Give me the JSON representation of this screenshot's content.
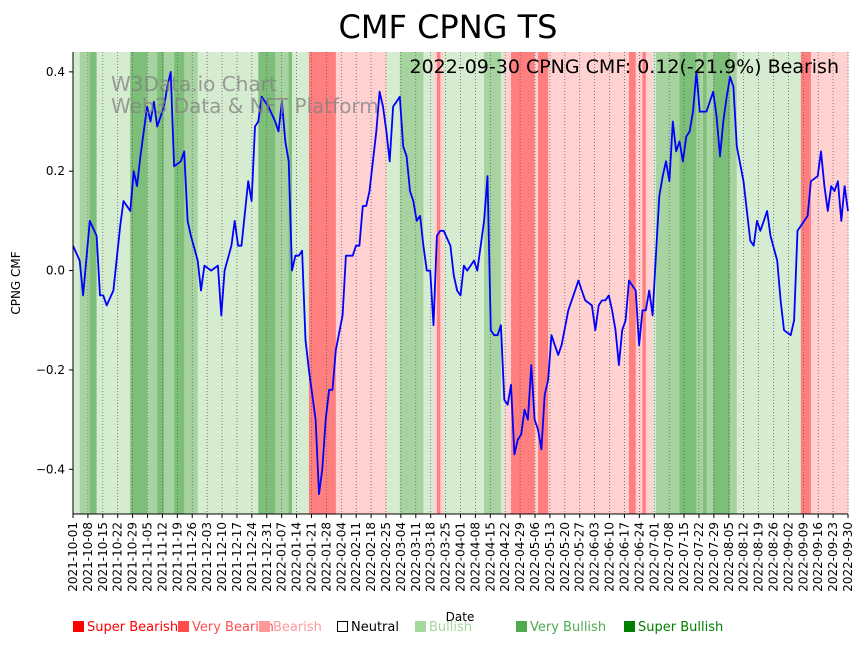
{
  "chart_data": {
    "type": "line",
    "title": "CMF CPNG TS",
    "annotation": "2022-09-30 CPNG CMF: 0.12(-21.9%) Bearish",
    "watermark": [
      "W3Data.io Chart",
      "Web3 Data & NFT Platform"
    ],
    "xlabel": "Date",
    "ylabel": "CPNG CMF",
    "ylim": [
      -0.49,
      0.44
    ],
    "yticks": [
      -0.4,
      -0.2,
      0.0,
      0.2,
      0.4
    ],
    "ytick_labels": [
      "−0.4",
      "−0.2",
      "0.0",
      "0.2",
      "0.4"
    ],
    "x_start": "2021-10-01",
    "x_end": "2022-09-30",
    "xtick_labels": [
      "2021-10-01",
      "2021-10-08",
      "2021-10-15",
      "2021-10-22",
      "2021-10-29",
      "2021-11-05",
      "2021-11-12",
      "2021-11-19",
      "2021-11-26",
      "2021-12-03",
      "2021-12-10",
      "2021-12-17",
      "2021-12-24",
      "2021-12-31",
      "2022-01-07",
      "2022-01-14",
      "2022-01-21",
      "2022-01-28",
      "2022-02-04",
      "2022-02-11",
      "2022-02-18",
      "2022-02-25",
      "2022-03-04",
      "2022-03-11",
      "2022-03-18",
      "2022-03-25",
      "2022-04-01",
      "2022-04-08",
      "2022-04-15",
      "2022-04-22",
      "2022-04-29",
      "2022-05-06",
      "2022-05-13",
      "2022-05-20",
      "2022-05-27",
      "2022-06-03",
      "2022-06-10",
      "2022-06-17",
      "2022-06-24",
      "2022-07-01",
      "2022-07-08",
      "2022-07-15",
      "2022-07-22",
      "2022-07-29",
      "2022-08-05",
      "2022-08-12",
      "2022-08-19",
      "2022-08-26",
      "2022-09-02",
      "2022-09-09",
      "2022-09-16",
      "2022-09-23",
      "2022-09-30"
    ],
    "series": [
      {
        "name": "CPNG CMF",
        "color": "#0000ff",
        "points": [
          [
            0,
            0.05
          ],
          [
            2,
            0.02
          ],
          [
            3,
            -0.05
          ],
          [
            5,
            0.1
          ],
          [
            7,
            0.07
          ],
          [
            8,
            -0.05
          ],
          [
            9,
            -0.05
          ],
          [
            10,
            -0.07
          ],
          [
            12,
            -0.04
          ],
          [
            14,
            0.09
          ],
          [
            15,
            0.14
          ],
          [
            17,
            0.12
          ],
          [
            18,
            0.2
          ],
          [
            19,
            0.17
          ],
          [
            20,
            0.23
          ],
          [
            22,
            0.33
          ],
          [
            23,
            0.3
          ],
          [
            24,
            0.34
          ],
          [
            25,
            0.29
          ],
          [
            27,
            0.33
          ],
          [
            28,
            0.37
          ],
          [
            29,
            0.4
          ],
          [
            30,
            0.21
          ],
          [
            32,
            0.22
          ],
          [
            33,
            0.24
          ],
          [
            34,
            0.1
          ],
          [
            35,
            0.07
          ],
          [
            37,
            0.02
          ],
          [
            38,
            -0.04
          ],
          [
            39,
            0.01
          ],
          [
            41,
            0.0
          ],
          [
            43,
            0.01
          ],
          [
            44,
            -0.09
          ],
          [
            45,
            0.0
          ],
          [
            47,
            0.05
          ],
          [
            48,
            0.1
          ],
          [
            49,
            0.05
          ],
          [
            50,
            0.05
          ],
          [
            52,
            0.18
          ],
          [
            53,
            0.14
          ],
          [
            54,
            0.29
          ],
          [
            55,
            0.3
          ],
          [
            56,
            0.35
          ],
          [
            58,
            0.33
          ],
          [
            60,
            0.3
          ],
          [
            61,
            0.28
          ],
          [
            62,
            0.34
          ],
          [
            63,
            0.26
          ],
          [
            64,
            0.22
          ],
          [
            65,
            0.0
          ],
          [
            66,
            0.03
          ],
          [
            67,
            0.03
          ],
          [
            68,
            0.04
          ],
          [
            69,
            -0.14
          ],
          [
            70,
            -0.2
          ],
          [
            72,
            -0.3
          ],
          [
            73,
            -0.45
          ],
          [
            74,
            -0.4
          ],
          [
            75,
            -0.3
          ],
          [
            76,
            -0.24
          ],
          [
            77,
            -0.24
          ],
          [
            78,
            -0.16
          ],
          [
            80,
            -0.09
          ],
          [
            81,
            0.03
          ],
          [
            82,
            0.03
          ],
          [
            83,
            0.03
          ],
          [
            84,
            0.05
          ],
          [
            85,
            0.05
          ],
          [
            86,
            0.13
          ],
          [
            87,
            0.13
          ],
          [
            88,
            0.16
          ],
          [
            90,
            0.28
          ],
          [
            91,
            0.36
          ],
          [
            92,
            0.33
          ],
          [
            93,
            0.28
          ],
          [
            94,
            0.22
          ],
          [
            95,
            0.33
          ],
          [
            96,
            0.34
          ],
          [
            97,
            0.35
          ],
          [
            98,
            0.25
          ],
          [
            99,
            0.23
          ],
          [
            100,
            0.16
          ],
          [
            101,
            0.14
          ],
          [
            102,
            0.1
          ],
          [
            103,
            0.11
          ],
          [
            104,
            0.05
          ],
          [
            105,
            0.0
          ],
          [
            106,
            0.0
          ],
          [
            107,
            -0.11
          ],
          [
            108,
            0.07
          ],
          [
            109,
            0.08
          ],
          [
            110,
            0.08
          ],
          [
            112,
            0.05
          ],
          [
            113,
            -0.01
          ],
          [
            114,
            -0.04
          ],
          [
            115,
            -0.05
          ],
          [
            116,
            0.01
          ],
          [
            117,
            0.0
          ],
          [
            118,
            0.01
          ],
          [
            119,
            0.02
          ],
          [
            120,
            0.0
          ],
          [
            121,
            0.05
          ],
          [
            122,
            0.1
          ],
          [
            123,
            0.19
          ],
          [
            124,
            -0.12
          ],
          [
            125,
            -0.13
          ],
          [
            126,
            -0.13
          ],
          [
            127,
            -0.11
          ],
          [
            128,
            -0.26
          ],
          [
            129,
            -0.27
          ],
          [
            130,
            -0.23
          ],
          [
            131,
            -0.37
          ],
          [
            132,
            -0.34
          ],
          [
            133,
            -0.33
          ],
          [
            134,
            -0.28
          ],
          [
            135,
            -0.3
          ],
          [
            136,
            -0.19
          ],
          [
            137,
            -0.3
          ],
          [
            138,
            -0.32
          ],
          [
            139,
            -0.36
          ],
          [
            140,
            -0.25
          ],
          [
            141,
            -0.22
          ],
          [
            142,
            -0.13
          ],
          [
            143,
            -0.15
          ],
          [
            144,
            -0.17
          ],
          [
            145,
            -0.15
          ],
          [
            147,
            -0.08
          ],
          [
            148,
            -0.06
          ],
          [
            149,
            -0.04
          ],
          [
            150,
            -0.02
          ],
          [
            151,
            -0.04
          ],
          [
            152,
            -0.06
          ],
          [
            154,
            -0.07
          ],
          [
            155,
            -0.12
          ],
          [
            156,
            -0.07
          ],
          [
            157,
            -0.06
          ],
          [
            158,
            -0.06
          ],
          [
            159,
            -0.05
          ],
          [
            160,
            -0.08
          ],
          [
            161,
            -0.12
          ],
          [
            162,
            -0.19
          ],
          [
            163,
            -0.12
          ],
          [
            164,
            -0.1
          ],
          [
            165,
            -0.02
          ],
          [
            167,
            -0.04
          ],
          [
            168,
            -0.15
          ],
          [
            169,
            -0.08
          ],
          [
            170,
            -0.08
          ],
          [
            171,
            -0.04
          ],
          [
            172,
            -0.09
          ],
          [
            173,
            0.03
          ],
          [
            174,
            0.15
          ],
          [
            175,
            0.19
          ],
          [
            176,
            0.22
          ],
          [
            177,
            0.18
          ],
          [
            178,
            0.3
          ],
          [
            179,
            0.24
          ],
          [
            180,
            0.26
          ],
          [
            181,
            0.22
          ],
          [
            182,
            0.27
          ],
          [
            183,
            0.28
          ],
          [
            184,
            0.32
          ],
          [
            185,
            0.4
          ],
          [
            186,
            0.32
          ],
          [
            188,
            0.32
          ],
          [
            189,
            0.34
          ],
          [
            190,
            0.36
          ],
          [
            191,
            0.31
          ],
          [
            192,
            0.23
          ],
          [
            193,
            0.3
          ],
          [
            194,
            0.35
          ],
          [
            195,
            0.39
          ],
          [
            196,
            0.37
          ],
          [
            197,
            0.25
          ],
          [
            199,
            0.18
          ],
          [
            200,
            0.12
          ],
          [
            201,
            0.06
          ],
          [
            202,
            0.05
          ],
          [
            203,
            0.1
          ],
          [
            204,
            0.08
          ],
          [
            205,
            0.1
          ],
          [
            206,
            0.12
          ],
          [
            207,
            0.07
          ],
          [
            209,
            0.02
          ],
          [
            210,
            -0.06
          ],
          [
            211,
            -0.12
          ],
          [
            213,
            -0.13
          ],
          [
            214,
            -0.1
          ],
          [
            215,
            0.08
          ],
          [
            217,
            0.1
          ],
          [
            218,
            0.11
          ],
          [
            219,
            0.18
          ],
          [
            221,
            0.19
          ],
          [
            222,
            0.24
          ],
          [
            223,
            0.17
          ],
          [
            224,
            0.12
          ],
          [
            225,
            0.17
          ],
          [
            226,
            0.16
          ],
          [
            227,
            0.18
          ],
          [
            228,
            0.1
          ],
          [
            229,
            0.17
          ],
          [
            230,
            0.12
          ]
        ]
      }
    ],
    "bands_sentiment": [
      [
        0,
        2,
        "Bullish"
      ],
      [
        2,
        3,
        "Very Bullish"
      ],
      [
        3,
        5,
        "Very Bullish"
      ],
      [
        5,
        7,
        "Super Bullish"
      ],
      [
        7,
        10,
        "Bullish"
      ],
      [
        10,
        15,
        "Bullish"
      ],
      [
        15,
        17,
        "Bullish"
      ],
      [
        17,
        22,
        "Super Bullish"
      ],
      [
        22,
        25,
        "Very Bullish"
      ],
      [
        25,
        27,
        "Super Bullish"
      ],
      [
        27,
        30,
        "Very Bullish"
      ],
      [
        30,
        33,
        "Super Bullish"
      ],
      [
        33,
        37,
        "Very Bullish"
      ],
      [
        37,
        40,
        "Bullish"
      ],
      [
        40,
        48,
        "Bullish"
      ],
      [
        48,
        50,
        "Bullish"
      ],
      [
        50,
        52,
        "Bullish"
      ],
      [
        52,
        55,
        "Bullish"
      ],
      [
        55,
        60,
        "Super Bullish"
      ],
      [
        60,
        64,
        "Very Bullish"
      ],
      [
        64,
        65,
        "Super Bullish"
      ],
      [
        65,
        67,
        "Bullish"
      ],
      [
        67,
        70,
        "Bullish"
      ],
      [
        70,
        72,
        "Very Bearish"
      ],
      [
        72,
        78,
        "Very Bearish"
      ],
      [
        78,
        80,
        "Bearish"
      ],
      [
        80,
        86,
        "Bearish"
      ],
      [
        86,
        93,
        "Bearish"
      ],
      [
        93,
        95,
        "Bullish"
      ],
      [
        95,
        97,
        "Bullish"
      ],
      [
        97,
        102,
        "Very Bullish"
      ],
      [
        102,
        104,
        "Very Bullish"
      ],
      [
        104,
        107,
        "Bullish"
      ],
      [
        107,
        108,
        "Bearish"
      ],
      [
        108,
        109,
        "Very Bearish"
      ],
      [
        109,
        110,
        "Bearish"
      ],
      [
        110,
        122,
        "Bullish"
      ],
      [
        122,
        126,
        "Very Bullish"
      ],
      [
        126,
        127,
        "Very Bullish"
      ],
      [
        127,
        128,
        "Bullish"
      ],
      [
        128,
        130,
        "Bearish"
      ],
      [
        130,
        137,
        "Very Bearish"
      ],
      [
        137,
        138,
        "Bearish"
      ],
      [
        138,
        141,
        "Very Bearish"
      ],
      [
        141,
        143,
        "Bearish"
      ],
      [
        143,
        160,
        "Bearish"
      ],
      [
        160,
        165,
        "Bearish"
      ],
      [
        165,
        167,
        "Very Bearish"
      ],
      [
        167,
        169,
        "Bearish"
      ],
      [
        169,
        170,
        "Very Bearish"
      ],
      [
        170,
        172,
        "Bearish"
      ],
      [
        172,
        173,
        "Bullish"
      ],
      [
        173,
        180,
        "Very Bullish"
      ],
      [
        180,
        185,
        "Super Bullish"
      ],
      [
        185,
        187,
        "Very Bullish"
      ],
      [
        187,
        188,
        "Super Bullish"
      ],
      [
        188,
        190,
        "Very Bullish"
      ],
      [
        190,
        195,
        "Super Bullish"
      ],
      [
        195,
        197,
        "Very Bullish"
      ],
      [
        197,
        200,
        "Bullish"
      ],
      [
        200,
        205,
        "Bullish"
      ],
      [
        205,
        216,
        "Bullish"
      ],
      [
        216,
        219,
        "Very Bearish"
      ],
      [
        219,
        230,
        "Bearish"
      ]
    ],
    "legend": [
      {
        "label": "Super Bearish",
        "color": "#ff0000"
      },
      {
        "label": "Very Bearish",
        "color": "#ff4d4d"
      },
      {
        "label": "Bearish",
        "color": "#ff9999"
      },
      {
        "label": "Neutral",
        "color": "#000000"
      },
      {
        "label": "Bullish",
        "color": "#a3d99b"
      },
      {
        "label": "Very Bullish",
        "color": "#4fa94f"
      },
      {
        "label": "Super Bullish",
        "color": "#008000"
      }
    ],
    "band_colors": {
      "Bearish": "#ffd1d1",
      "Very Bearish": "#ff7f7f",
      "Super Bearish": "#ff4040",
      "Bullish": "#d6ecd0",
      "Very Bullish": "#a7d3a0",
      "Super Bullish": "#7dbf78"
    }
  }
}
